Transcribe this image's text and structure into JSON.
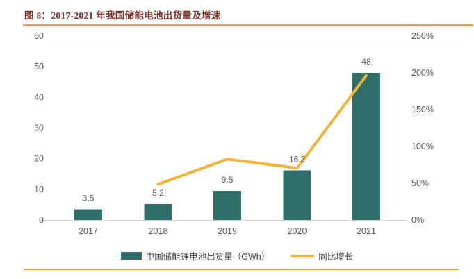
{
  "title": "图 8：2017-2021 年我国储能电池出货量及增速",
  "colors": {
    "title": "#78302A",
    "accent_rule": "#E9A33C",
    "bar": "#2E6E66",
    "line": "#F0B43C",
    "axis_text": "#595959",
    "axis_line": "#D2D2D2"
  },
  "chart_data": {
    "type": "bar+line combo",
    "title": "图 8：2017-2021 年我国储能电池出货量及增速",
    "categories": [
      "2017",
      "2018",
      "2019",
      "2020",
      "2021"
    ],
    "series": [
      {
        "name": "中国储能锂电池出货量（GWh）",
        "type": "bar",
        "axis": "left",
        "values": [
          3.5,
          5.2,
          9.5,
          16.2,
          48
        ],
        "data_labels": [
          "3.5",
          "5.2",
          "9.5",
          "16.2",
          "48"
        ]
      },
      {
        "name": "同比增长",
        "type": "line",
        "axis": "right",
        "values_pct": [
          null,
          48.6,
          82.7,
          70.5,
          196.3
        ]
      }
    ],
    "left_axis": {
      "min": 0,
      "max": 60,
      "tick_step": 10,
      "tick_labels": [
        "0",
        "10",
        "20",
        "30",
        "40",
        "50",
        "60"
      ]
    },
    "right_axis": {
      "min_pct": 0,
      "max_pct": 250,
      "tick_step_pct": 50,
      "tick_labels": [
        "0%",
        "50%",
        "100%",
        "150%",
        "200%",
        "250%"
      ]
    },
    "legend_position": "bottom",
    "grid": "off"
  }
}
